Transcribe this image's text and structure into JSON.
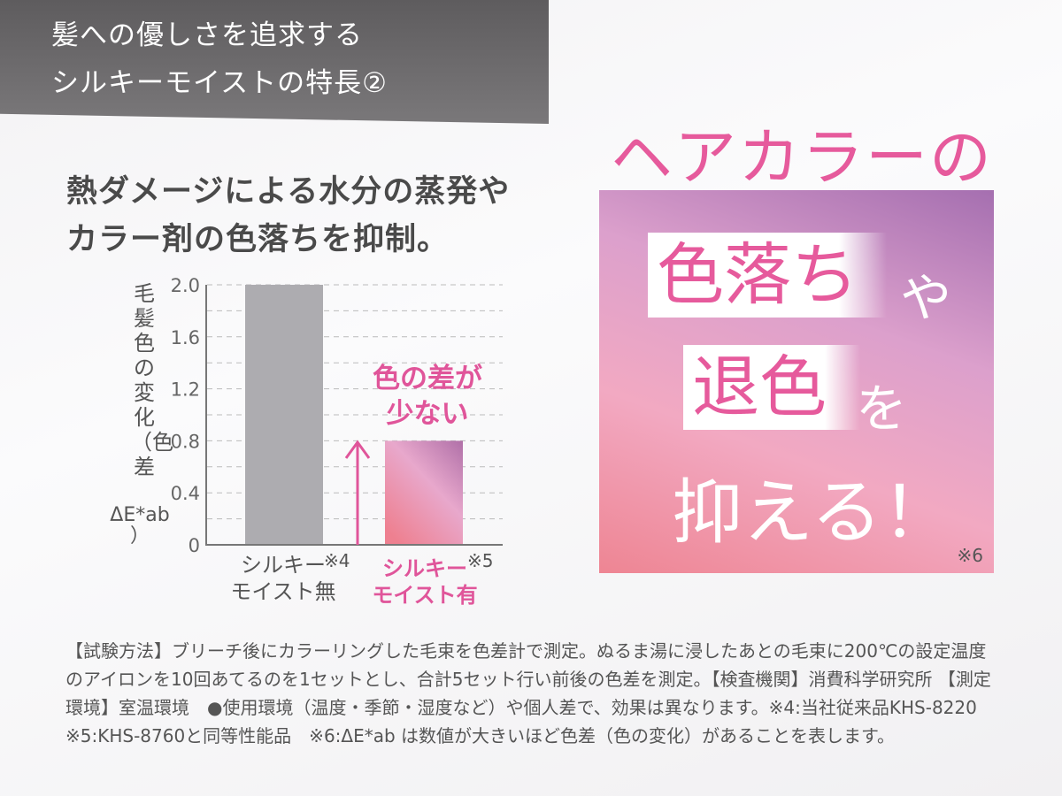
{
  "banner": {
    "line1": "髪への優しさを追求する",
    "line2": "シルキーモイストの特長②"
  },
  "headline": {
    "line1": "熱ダメージによる水分の蒸発や",
    "line2": "カラー剤の色落ちを抑制。"
  },
  "chart_data": {
    "type": "bar",
    "ylabel": "毛髪色の変化（色差",
    "ylabel_unit": "ΔE*ab",
    "ylabel_close": "）",
    "ylim": [
      0,
      2.0
    ],
    "yticks": [
      "0",
      "0.4",
      "0.8",
      "1.2",
      "1.6",
      "2.0"
    ],
    "grid": "dashed",
    "categories": [
      {
        "line1": "シルキー",
        "line2": "モイスト無",
        "note": "※4"
      },
      {
        "line1": "シルキー",
        "line2": "モイスト有",
        "note": "※5"
      }
    ],
    "values": [
      2.0,
      0.8
    ],
    "colors": [
      "#adacb0",
      "#e88fb0"
    ],
    "annotation": {
      "line1": "色の差が",
      "line2": "少ない"
    }
  },
  "right": {
    "title": "ヘアカラーの",
    "box1": "色落ち",
    "particle1": "や",
    "box2": "退色",
    "particle2": "を",
    "line3": "抑える！",
    "note": "※6"
  },
  "footnote": [
    "【試験方法】ブリーチ後にカラーリングした毛束を色差計で測定。ぬるま湯に浸したあとの毛束に200℃の設定温度",
    "のアイロンを10回あてるのを1セットとし、合計5セット行い前後の色差を測定。【検査機関】消費科学研究所 【測定",
    "環境】室温環境　●使用環境（温度・季節・湿度など）や個人差で、効果は異なります。※4:当社従来品KHS-8220",
    "※5:KHS-8760と同等性能品　※6:ΔE*ab は数値が大きいほど色差（色の変化）があることを表します。"
  ],
  "colors": {
    "accent": "#e65a9c",
    "banner": "#6a686a"
  }
}
